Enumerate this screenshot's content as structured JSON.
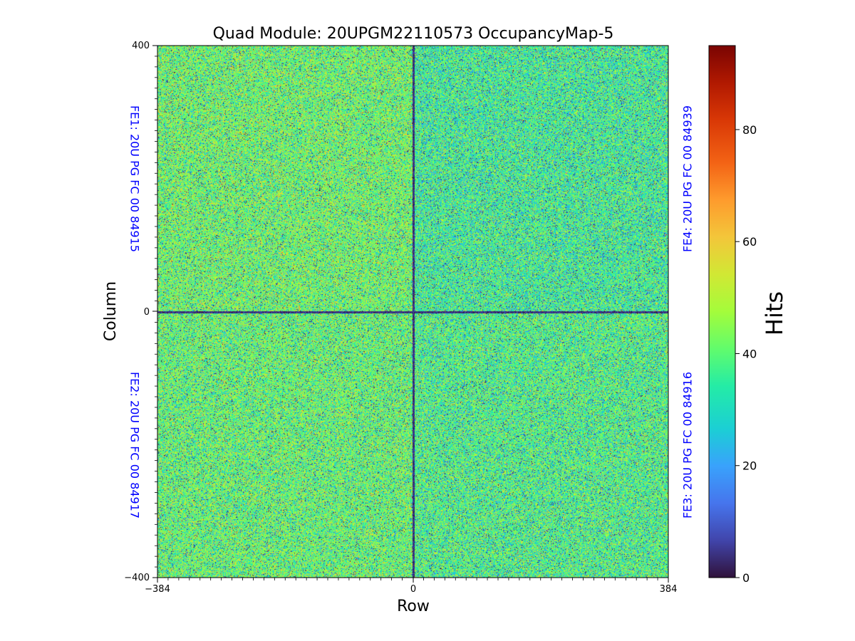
{
  "chart_data": {
    "type": "heatmap",
    "title": "Quad Module: 20UPGM22110573 OccupancyMap-5",
    "xlabel": "Row",
    "ylabel": "Column",
    "xlim": [
      -384,
      384
    ],
    "ylim": [
      -400,
      400
    ],
    "x_ticks": [
      "−384",
      "0",
      "384"
    ],
    "y_ticks": [
      "400",
      "0",
      "−400"
    ],
    "colorbar": {
      "label": "Hits",
      "range": [
        0,
        95
      ],
      "ticks": [
        "0",
        "20",
        "40",
        "60",
        "80"
      ],
      "colormap": "turbo"
    },
    "quadrants": [
      {
        "id": "FE1",
        "label": "FE1: 20U PG FC 00 84915",
        "position": "top-left",
        "mean_hits": 42
      },
      {
        "id": "FE4",
        "label": "FE4: 20U PG FC 00 84939",
        "position": "top-right",
        "mean_hits": 36
      },
      {
        "id": "FE2",
        "label": "FE2: 20U PG FC 00 84917",
        "position": "bottom-left",
        "mean_hits": 41
      },
      {
        "id": "FE3",
        "label": "FE3: 20U PG FC 00 84916",
        "position": "bottom-right",
        "mean_hits": 38
      }
    ]
  }
}
